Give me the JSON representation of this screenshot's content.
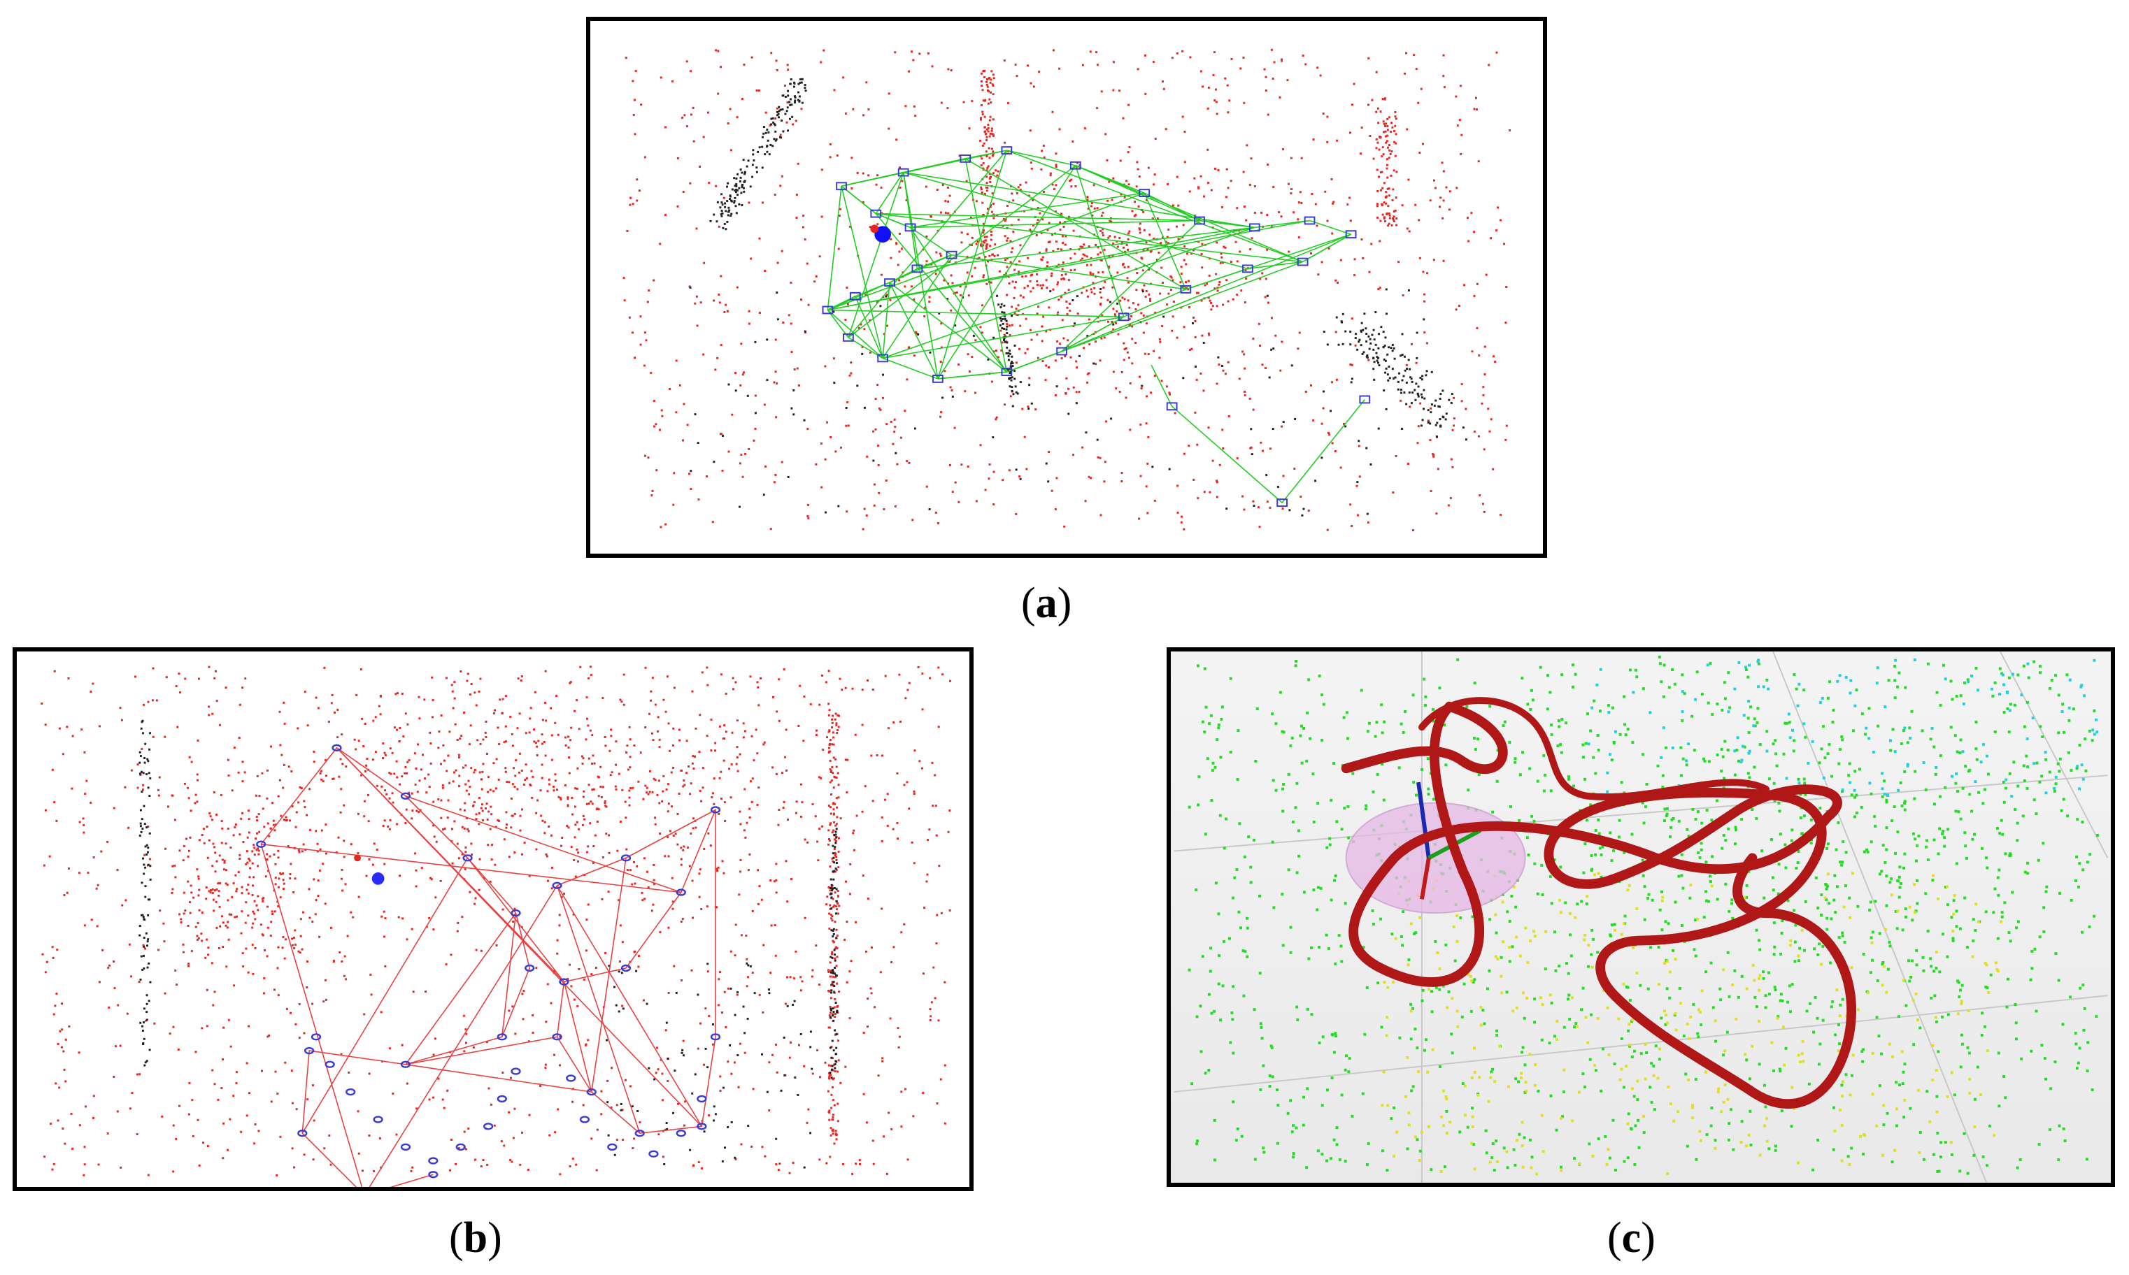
{
  "figure": {
    "panels": [
      {
        "id": "a",
        "caption_open": "(",
        "caption_letter": "a",
        "caption_close": ")",
        "description_colors": {
          "map_points": "#e8251f",
          "far_points": "#222222",
          "keyframes": "#3a3ad8",
          "covisibility_graph": "#22cc22",
          "current_camera": "#1010ff"
        }
      },
      {
        "id": "b",
        "caption_open": "(",
        "caption_letter": "b",
        "caption_close": ")",
        "description_colors": {
          "map_points": "#e8251f",
          "far_points": "#222222",
          "keyframes": "#3a3ad8",
          "graph_edges": "#e84040",
          "current_camera": "#2a2aff"
        }
      },
      {
        "id": "c",
        "caption_open": "(",
        "caption_letter": "c",
        "caption_close": ")",
        "description_colors": {
          "trajectory": "#b01818",
          "point_cloud_green": "#22dd22",
          "point_cloud_yellow": "#e0e020",
          "point_cloud_cyan": "#20d0e0",
          "ellipse": "#e6b8e6",
          "grid": "#c8c8c8"
        }
      }
    ]
  }
}
